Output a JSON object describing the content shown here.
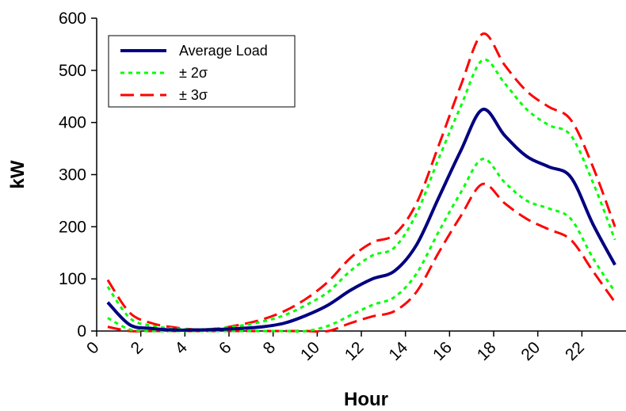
{
  "chart_data": {
    "type": "line",
    "title": "",
    "xlabel": "Hour",
    "ylabel": "kW",
    "xlim": [
      0,
      24
    ],
    "ylim": [
      0,
      600
    ],
    "x_ticks": [
      "0",
      "2",
      "4",
      "6",
      "8",
      "10",
      "12",
      "14",
      "16",
      "18",
      "20",
      "22"
    ],
    "y_ticks": [
      "0",
      "100",
      "200",
      "300",
      "400",
      "500",
      "600"
    ],
    "grid": false,
    "legend_position": "top-left",
    "x": [
      0.5,
      1.5,
      2.5,
      3.5,
      4.5,
      5.5,
      6.5,
      7.5,
      8.5,
      9.5,
      10.5,
      11.5,
      12.5,
      13.5,
      14.5,
      15.5,
      16.5,
      17.5,
      18.5,
      19.5,
      20.5,
      21.5,
      22.5,
      23.5
    ],
    "series": [
      {
        "name": "Average Load",
        "color": "#000080",
        "style": "solid",
        "values": [
          55,
          12,
          5,
          2,
          2,
          3,
          5,
          8,
          15,
          30,
          50,
          78,
          100,
          115,
          165,
          255,
          345,
          425,
          375,
          335,
          315,
          295,
          205,
          127
        ]
      },
      {
        "name": "± 2σ",
        "color": "#00ff00",
        "style": "dotted",
        "values": [
          85,
          25,
          10,
          5,
          3,
          5,
          10,
          18,
          30,
          50,
          75,
          115,
          145,
          160,
          225,
          330,
          430,
          520,
          475,
          425,
          395,
          375,
          285,
          175
        ]
      },
      {
        "name": "",
        "color": "#00ff00",
        "style": "dotted",
        "values": [
          25,
          3,
          0,
          0,
          0,
          0,
          0,
          0,
          0,
          0,
          10,
          30,
          50,
          65,
          110,
          190,
          265,
          330,
          285,
          250,
          235,
          215,
          140,
          75
        ]
      },
      {
        "name": "± 3σ",
        "color": "#ff0000",
        "style": "dashed",
        "values": [
          98,
          35,
          15,
          7,
          3,
          5,
          12,
          22,
          38,
          62,
          95,
          140,
          170,
          185,
          245,
          355,
          470,
          570,
          510,
          460,
          430,
          405,
          315,
          200
        ]
      },
      {
        "name": "",
        "color": "#ff0000",
        "style": "dashed",
        "values": [
          8,
          0,
          0,
          0,
          0,
          0,
          0,
          0,
          0,
          0,
          0,
          15,
          28,
          38,
          75,
          150,
          220,
          282,
          245,
          215,
          195,
          175,
          115,
          55
        ]
      }
    ]
  }
}
